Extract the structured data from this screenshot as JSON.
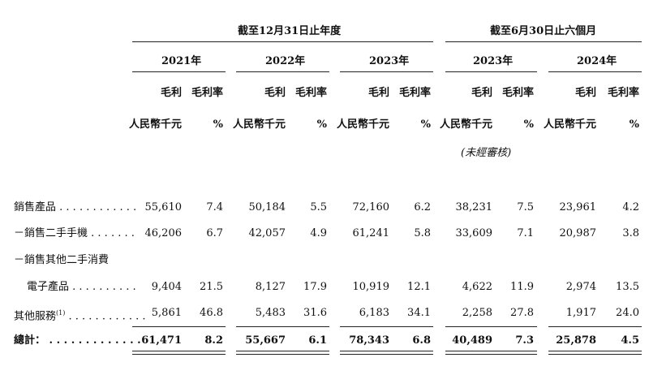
{
  "headers": {
    "period_annual": "截至12月31日止年度",
    "period_interim": "截至6月30日止六個月",
    "years": [
      "2021年",
      "2022年",
      "2023年",
      "2023年",
      "2024年"
    ],
    "col_gross_profit": "毛利",
    "col_margin": "毛利率",
    "unit_currency": "人民幣千元",
    "unit_percent": "%",
    "unaudited": "(未經審核)"
  },
  "rows": [
    {
      "label": "銷售產品",
      "values": [
        "55,610",
        "7.4",
        "50,184",
        "5.5",
        "72,160",
        "6.2",
        "38,231",
        "7.5",
        "23,961",
        "4.2"
      ]
    },
    {
      "label": "－銷售二手手機",
      "values": [
        "46,206",
        "6.7",
        "42,057",
        "4.9",
        "61,241",
        "5.8",
        "33,609",
        "7.1",
        "20,987",
        "3.8"
      ]
    },
    {
      "label": "－銷售其他二手消費",
      "values": []
    },
    {
      "label": "電子產品",
      "values": [
        "9,404",
        "21.5",
        "8,127",
        "17.9",
        "10,919",
        "12.1",
        "4,622",
        "11.9",
        "2,974",
        "13.5"
      ]
    },
    {
      "label": "其他服務",
      "sup": "(1)",
      "values": [
        "5,861",
        "46.8",
        "5,483",
        "31.6",
        "6,183",
        "34.1",
        "2,258",
        "27.8",
        "1,917",
        "24.0"
      ]
    }
  ],
  "total": {
    "label": "總計：",
    "values": [
      "61,471",
      "8.2",
      "55,667",
      "6.1",
      "78,343",
      "6.8",
      "40,489",
      "7.3",
      "25,878",
      "4.5"
    ]
  }
}
